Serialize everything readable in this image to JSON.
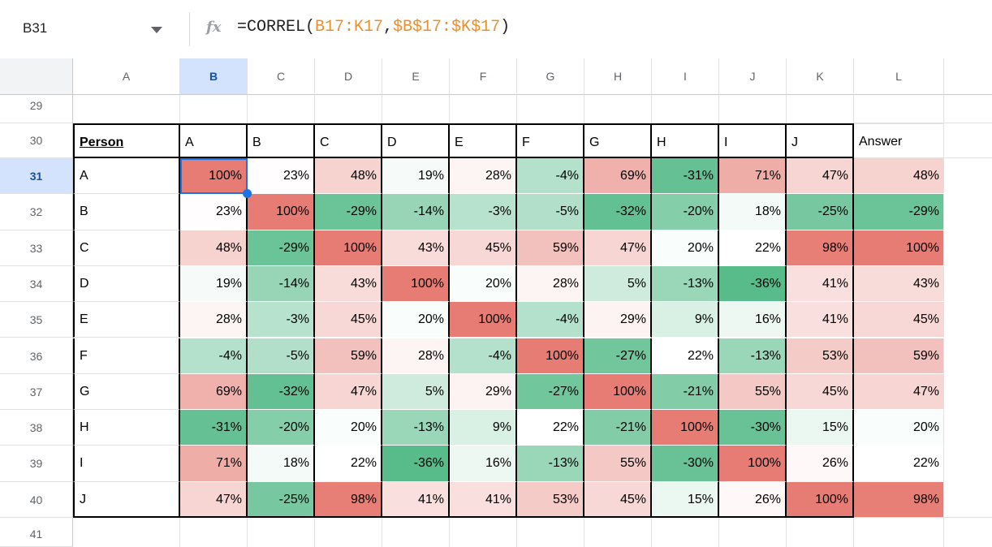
{
  "name_box": {
    "value": "B31"
  },
  "formula_bar": {
    "fx_label": "fx",
    "formula_parts": [
      {
        "text": "=CORREL(",
        "color": "#202124"
      },
      {
        "text": "B17:K17",
        "color": "#EB8F2E"
      },
      {
        "text": ",",
        "color": "#202124"
      },
      {
        "text": "$B$17:$K$17",
        "color": "#EB8F2E"
      },
      {
        "text": ")",
        "color": "#202124"
      }
    ]
  },
  "grid": {
    "column_headers": [
      "A",
      "B",
      "C",
      "D",
      "E",
      "F",
      "G",
      "H",
      "I",
      "J",
      "K",
      "L"
    ],
    "row_headers": [
      "29",
      "30",
      "31",
      "32",
      "33",
      "34",
      "35",
      "36",
      "37",
      "38",
      "39",
      "40",
      "41"
    ],
    "selected_column": "B",
    "selected_row": "31"
  },
  "selection": {
    "cell": "B31",
    "border_color": "#1A73E8",
    "header_highlight_bg": "#D3E3FD",
    "header_highlight_text": "#174EA6"
  },
  "table": {
    "header": {
      "person": "Person",
      "letters": [
        "A",
        "B",
        "C",
        "D",
        "E",
        "F",
        "G",
        "H",
        "I",
        "J"
      ],
      "answer": "Answer"
    },
    "value_suffix": "%",
    "rows": [
      {
        "row": "31",
        "person": "A",
        "values": [
          100,
          23,
          48,
          19,
          28,
          -4,
          69,
          -31,
          71,
          47
        ],
        "answer": 48
      },
      {
        "row": "32",
        "person": "B",
        "values": [
          23,
          100,
          -29,
          -14,
          -3,
          -5,
          -32,
          -20,
          18,
          -25
        ],
        "answer": -29
      },
      {
        "row": "33",
        "person": "C",
        "values": [
          48,
          -29,
          100,
          43,
          45,
          59,
          47,
          20,
          22,
          98
        ],
        "answer": 100
      },
      {
        "row": "34",
        "person": "D",
        "values": [
          19,
          -14,
          43,
          100,
          20,
          28,
          5,
          -13,
          -36,
          41
        ],
        "answer": 43
      },
      {
        "row": "35",
        "person": "E",
        "values": [
          28,
          -3,
          45,
          20,
          100,
          -4,
          29,
          9,
          16,
          41
        ],
        "answer": 45
      },
      {
        "row": "36",
        "person": "F",
        "values": [
          -4,
          -5,
          59,
          28,
          -4,
          100,
          -27,
          22,
          -13,
          53
        ],
        "answer": 59
      },
      {
        "row": "37",
        "person": "G",
        "values": [
          69,
          -32,
          47,
          5,
          29,
          -27,
          100,
          -21,
          55,
          45
        ],
        "answer": 47
      },
      {
        "row": "38",
        "person": "H",
        "values": [
          -31,
          -20,
          20,
          -13,
          9,
          22,
          -21,
          100,
          -30,
          15
        ],
        "answer": 20
      },
      {
        "row": "39",
        "person": "I",
        "values": [
          71,
          18,
          22,
          -36,
          16,
          -13,
          55,
          -30,
          100,
          26
        ],
        "answer": 22
      },
      {
        "row": "40",
        "person": "J",
        "values": [
          47,
          -25,
          98,
          41,
          41,
          53,
          45,
          15,
          26,
          100
        ],
        "answer": 98
      }
    ]
  },
  "conditional_format": {
    "min_value": -36,
    "min_color": "#57BB8A",
    "mid_value": 22,
    "mid_color": "#FFFFFF",
    "max_value": 100,
    "max_color": "#E67C73"
  }
}
